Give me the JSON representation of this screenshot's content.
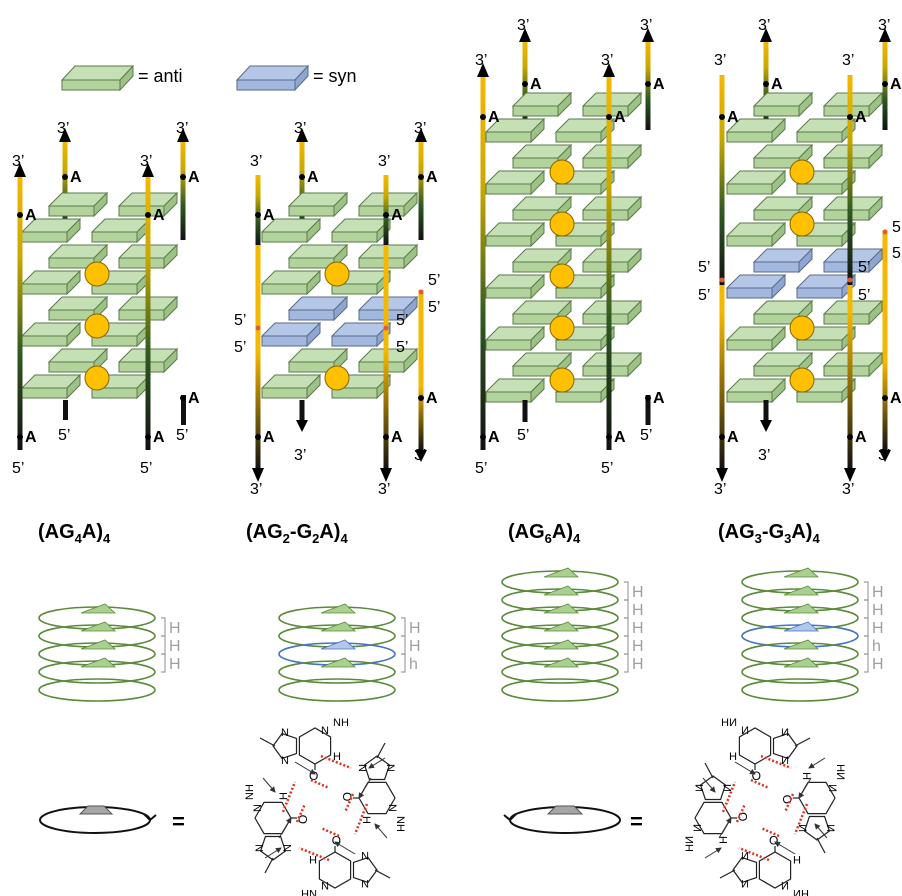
{
  "legend": {
    "anti_label": "= anti",
    "syn_label": "= syn"
  },
  "colors": {
    "anti_fill": "#c5e0b4",
    "anti_stroke": "#5a7a4a",
    "syn_fill": "#b4c7e7",
    "syn_stroke": "#5a6a8a",
    "strand_gold": "#f5b800",
    "strand_dark": "#1a1a1a",
    "strand_green": "#3a6b2a",
    "ion_fill": "#ffc000",
    "ion_stroke": "#8a6400",
    "helix_green": "#5a8a3a",
    "helix_blue": "#4472c4",
    "hbond_red": "#e03020",
    "bracket_gray": "#a0a0a0"
  },
  "panels": [
    {
      "title": "(AG",
      "title_sub": "4",
      "title_mid": "A)",
      "title_end": "4",
      "end_labels": {
        "three": "3’",
        "five": "5’",
        "residue": "A"
      },
      "helix_brackets": [
        "H",
        "H",
        "H"
      ]
    },
    {
      "title": "(AG",
      "title_sub": "2",
      "title_mid": "-G",
      "title_sub2": "2",
      "title_mid2": "A)",
      "title_end": "4",
      "end_labels": {
        "three": "3’",
        "five": "5’",
        "residue": "A"
      },
      "helix_brackets": [
        "H",
        "H",
        "h"
      ]
    },
    {
      "title": "(AG",
      "title_sub": "6",
      "title_mid": "A)",
      "title_end": "4",
      "end_labels": {
        "three": "3’",
        "five": "5’",
        "residue": "A"
      },
      "helix_brackets": [
        "H",
        "H",
        "H",
        "H",
        "H"
      ]
    },
    {
      "title": "(AG",
      "title_sub": "3",
      "title_mid": "-G",
      "title_sub2": "3",
      "title_mid2": "A)",
      "title_end": "4",
      "end_labels": {
        "three": "3’",
        "five": "5’",
        "residue": "A"
      },
      "helix_brackets": [
        "H",
        "H",
        "H",
        "h",
        "H"
      ]
    }
  ],
  "bottom": {
    "equals_1": "=",
    "equals_2": "=",
    "atom_N": "N",
    "atom_H": "H",
    "atom_O": "O",
    "atom_HN": "HN",
    "atom_NH": "NH"
  }
}
